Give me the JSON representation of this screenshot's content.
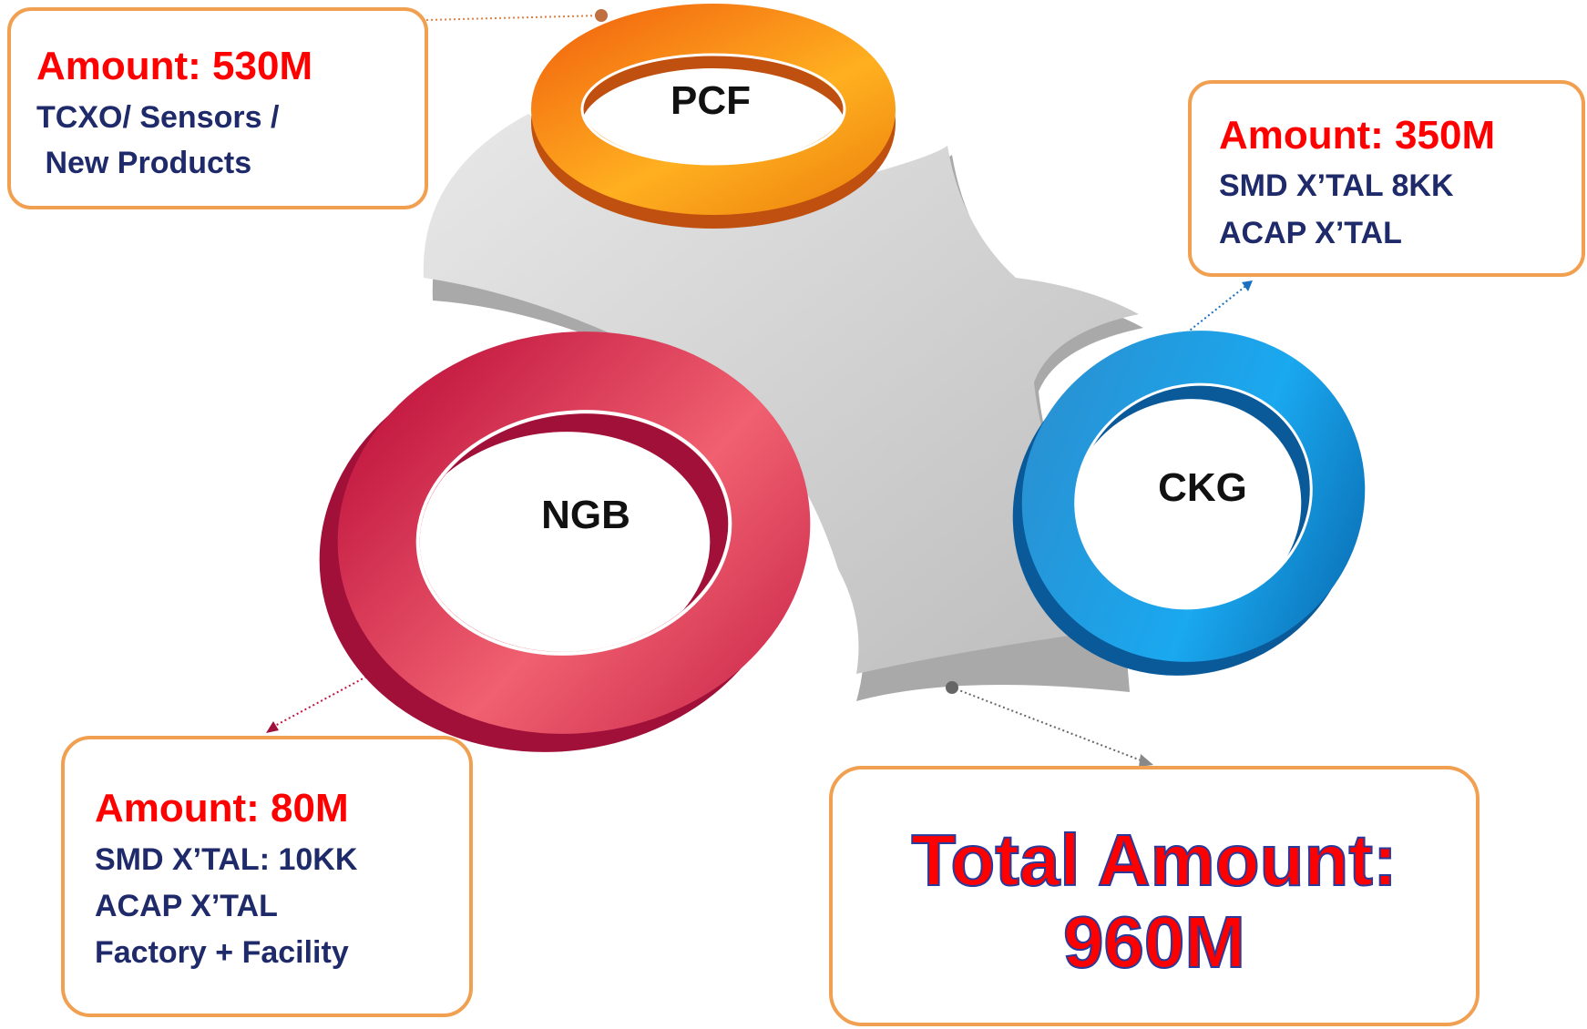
{
  "segments": [
    {
      "label": "PCF",
      "amount": "Amount: 530M",
      "details": [
        "TCXO/ Sensors /",
        " New Products"
      ]
    },
    {
      "label": "CKG",
      "amount": "Amount: 350M",
      "details": [
        "SMD X’TAL 8KK",
        "ACAP X’TAL"
      ]
    },
    {
      "label": "NGB",
      "amount": "Amount: 80M",
      "details": [
        "SMD X’TAL: 10KK",
        "ACAP X’TAL",
        "Factory + Facility"
      ]
    }
  ],
  "total": {
    "line1": "Total Amount:",
    "line2": "960M"
  }
}
